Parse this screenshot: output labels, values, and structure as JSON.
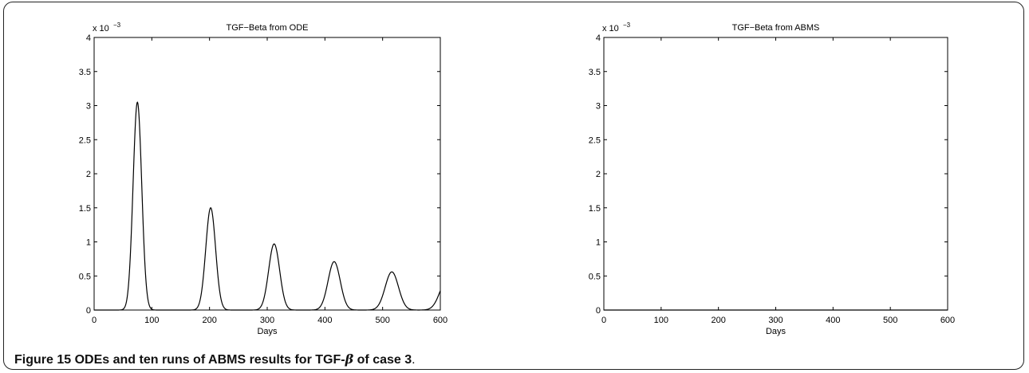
{
  "chart_data": [
    {
      "type": "line",
      "title": "TGF−Beta from ODE",
      "xlabel": "Days",
      "ylabel": "",
      "y_exponent_label": "x 10",
      "y_exponent_power": "−3",
      "xlim": [
        0,
        600
      ],
      "ylim": [
        0,
        4
      ],
      "y_scale_factor": 0.001,
      "x_ticks": [
        0,
        100,
        200,
        300,
        400,
        500,
        600
      ],
      "y_ticks": [
        0,
        0.5,
        1,
        1.5,
        2,
        2.5,
        3,
        3.5,
        4
      ],
      "x_tick_labels": [
        "0",
        "100",
        "200",
        "300",
        "400",
        "500",
        "600"
      ],
      "y_tick_labels": [
        "0",
        "0.5",
        "1",
        "1.5",
        "2",
        "2.5",
        "3",
        "3.5",
        "4"
      ],
      "grid": false,
      "series": [
        {
          "line_color": "#000000",
          "peaks": [
            {
              "x": 75,
              "y": 3.05,
              "width": 7.5
            },
            {
              "x": 202,
              "y": 1.5,
              "width": 8.5
            },
            {
              "x": 312,
              "y": 0.97,
              "width": 9.5
            },
            {
              "x": 416,
              "y": 0.71,
              "width": 10.5
            },
            {
              "x": 516,
              "y": 0.56,
              "width": 11.5
            },
            {
              "x": 612,
              "y": 0.45,
              "width": 12.5
            }
          ],
          "x_start": 0,
          "x_end": 600
        }
      ]
    },
    {
      "type": "line",
      "title": "TGF−Beta from ABMS",
      "xlabel": "Days",
      "ylabel": "",
      "y_exponent_label": "x 10",
      "y_exponent_power": "−3",
      "xlim": [
        0,
        600
      ],
      "ylim": [
        0,
        4
      ],
      "y_scale_factor": 0.001,
      "x_ticks": [
        0,
        100,
        200,
        300,
        400,
        500,
        600
      ],
      "y_ticks": [
        0,
        0.5,
        1,
        1.5,
        2,
        2.5,
        3,
        3.5,
        4
      ],
      "x_tick_labels": [
        "0",
        "100",
        "200",
        "300",
        "400",
        "500",
        "600"
      ],
      "y_tick_labels": [
        "0",
        "0.5",
        "1",
        "1.5",
        "2",
        "2.5",
        "3",
        "3.5",
        "4"
      ],
      "grid": false,
      "series": [
        {
          "line_color": "#000000",
          "values_constant": 0,
          "x_start": 0,
          "x_end": 600
        }
      ]
    }
  ],
  "caption": {
    "label": "Figure 15",
    "text_before": " ODEs and ten runs of ABMS results for TGF-",
    "greek": "β",
    "text_after": " of case 3",
    "period": "."
  }
}
